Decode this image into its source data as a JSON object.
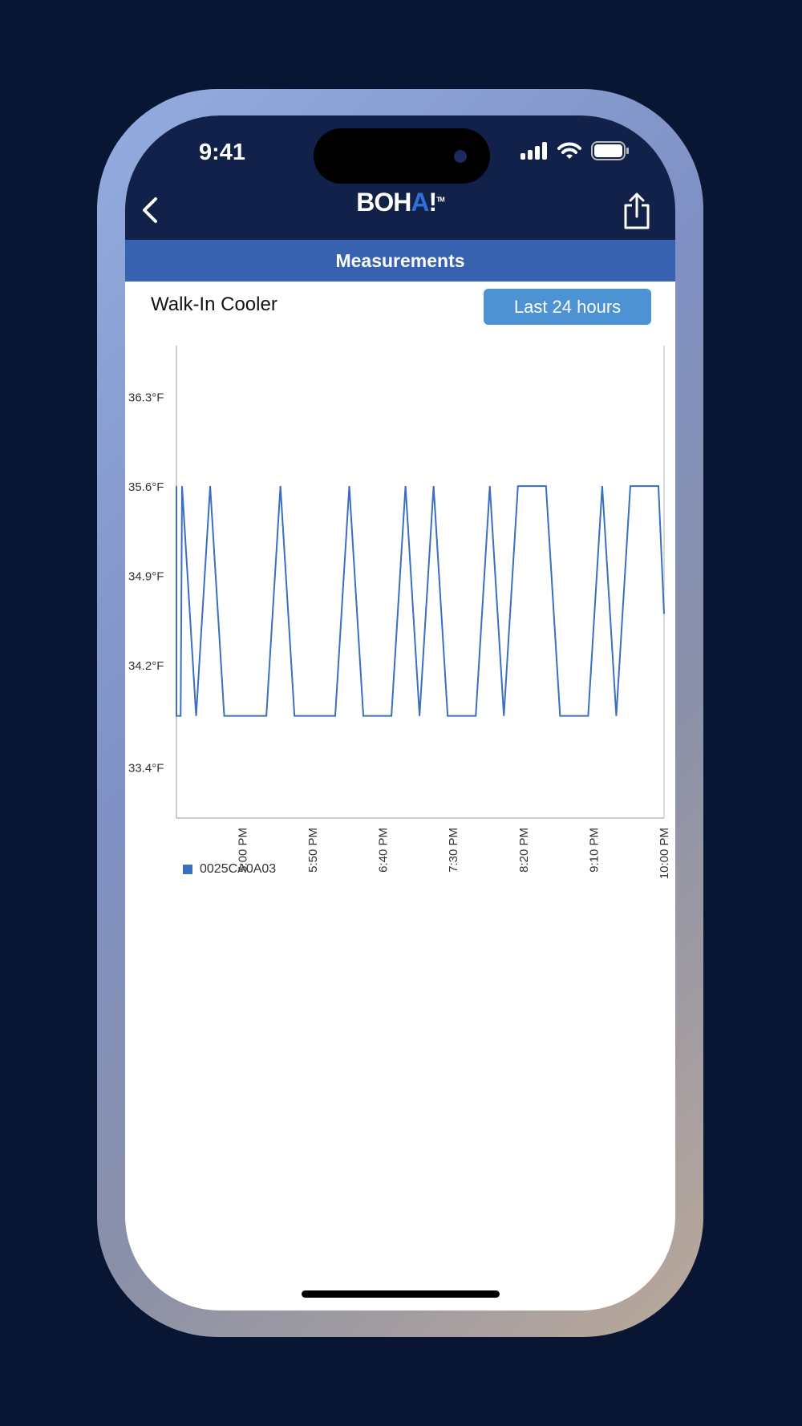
{
  "status_bar": {
    "time": "9:41",
    "icons": [
      "signal-icon",
      "wifi-icon",
      "battery-icon"
    ]
  },
  "header": {
    "logo": "BOHA!",
    "logo_tm": "TM",
    "back_icon": "chevron-left-icon",
    "share_icon": "share-icon"
  },
  "subheader": {
    "title": "Measurements"
  },
  "device": {
    "name": "Walk-In Cooler",
    "range_button": "Last 24 hours"
  },
  "colors": {
    "background": "#081533",
    "header": "#11214a",
    "subheader": "#3762b0",
    "button": "#4d93d3",
    "series": "#3a6fc0"
  },
  "chart_data": {
    "type": "line",
    "x_type": "time",
    "xlim": [
      "16:13",
      "22:00"
    ],
    "ylim": [
      33.0,
      36.7
    ],
    "x_ticks": [
      {
        "t": "17:00",
        "label": "5:00 PM"
      },
      {
        "t": "17:50",
        "label": "5:50 PM"
      },
      {
        "t": "18:40",
        "label": "6:40 PM"
      },
      {
        "t": "19:30",
        "label": "7:30 PM"
      },
      {
        "t": "20:20",
        "label": "8:20 PM"
      },
      {
        "t": "21:10",
        "label": "9:10 PM"
      },
      {
        "t": "22:00",
        "label": "10:00 PM"
      }
    ],
    "y_ticks": [
      {
        "v": 36.3,
        "label": "36.3°F"
      },
      {
        "v": 35.6,
        "label": "35.6°F"
      },
      {
        "v": 34.9,
        "label": "34.9°F"
      },
      {
        "v": 34.2,
        "label": "34.2°F"
      },
      {
        "v": 33.4,
        "label": "33.4°F"
      }
    ],
    "grid": false,
    "legend": "bottom-left",
    "series": [
      {
        "name": "0025CA0A03",
        "color": "#3a6fc0",
        "points": [
          [
            "16:13",
            35.6
          ],
          [
            "16:13",
            33.8
          ],
          [
            "16:16",
            33.8
          ],
          [
            "16:17",
            35.6
          ],
          [
            "16:27",
            33.8
          ],
          [
            "16:37",
            35.6
          ],
          [
            "16:47",
            33.8
          ],
          [
            "17:17",
            33.8
          ],
          [
            "17:27",
            35.6
          ],
          [
            "17:37",
            33.8
          ],
          [
            "18:06",
            33.8
          ],
          [
            "18:16",
            35.6
          ],
          [
            "18:26",
            33.8
          ],
          [
            "18:46",
            33.8
          ],
          [
            "18:56",
            35.6
          ],
          [
            "19:06",
            33.8
          ],
          [
            "19:16",
            35.6
          ],
          [
            "19:26",
            33.8
          ],
          [
            "19:46",
            33.8
          ],
          [
            "19:56",
            35.6
          ],
          [
            "20:06",
            33.8
          ],
          [
            "20:16",
            35.6
          ],
          [
            "20:36",
            35.6
          ],
          [
            "20:46",
            33.8
          ],
          [
            "21:06",
            33.8
          ],
          [
            "21:16",
            35.6
          ],
          [
            "21:26",
            33.8
          ],
          [
            "21:36",
            35.6
          ],
          [
            "21:56",
            35.6
          ],
          [
            "22:00",
            34.6
          ]
        ]
      }
    ]
  }
}
